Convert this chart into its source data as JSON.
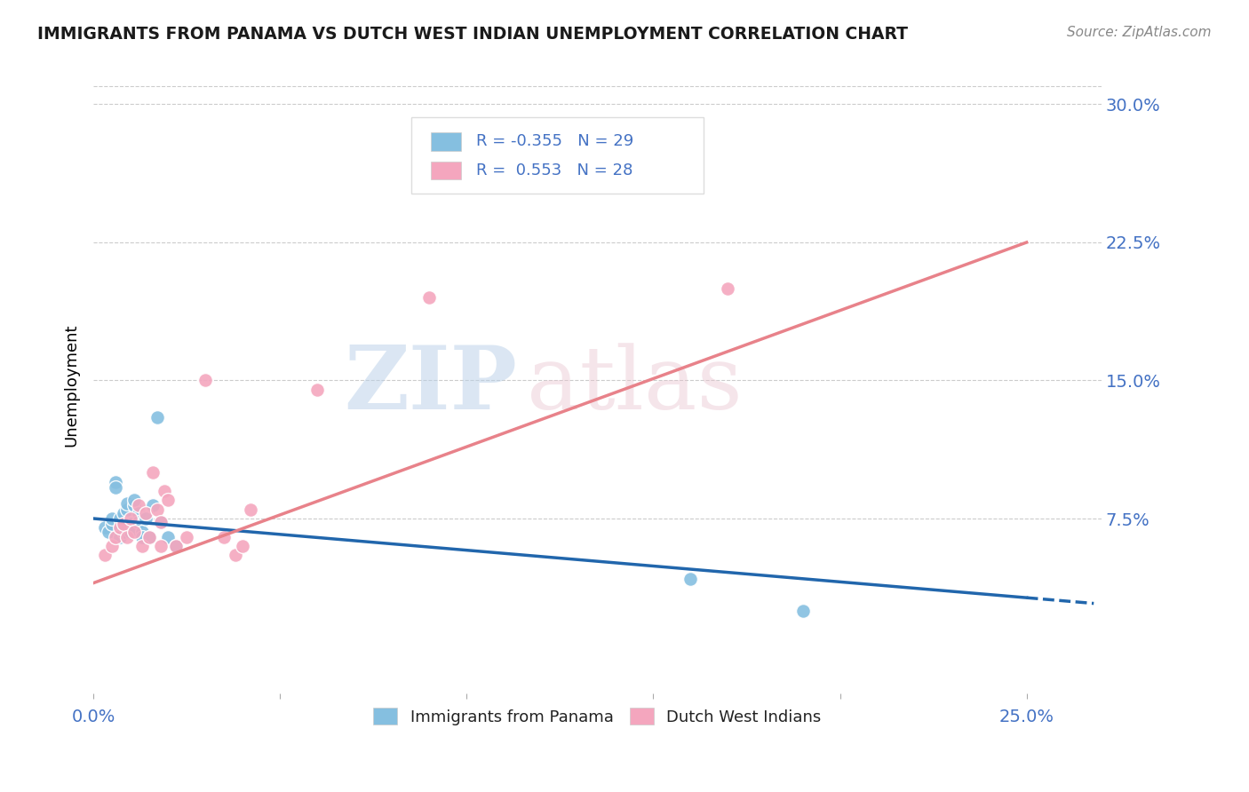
{
  "title": "IMMIGRANTS FROM PANAMA VS DUTCH WEST INDIAN UNEMPLOYMENT CORRELATION CHART",
  "source": "Source: ZipAtlas.com",
  "ylabel": "Unemployment",
  "ytick_vals": [
    0.075,
    0.15,
    0.225,
    0.3
  ],
  "ytick_labels": [
    "7.5%",
    "15.0%",
    "22.5%",
    "30.0%"
  ],
  "xlim": [
    0.0,
    0.27
  ],
  "ylim": [
    -0.02,
    0.315
  ],
  "legend_r_blue": "-0.355",
  "legend_n_blue": "29",
  "legend_r_pink": "0.553",
  "legend_n_pink": "28",
  "legend_label_blue": "Immigrants from Panama",
  "legend_label_pink": "Dutch West Indians",
  "blue_scatter_color": "#85bfe0",
  "pink_scatter_color": "#f4a6be",
  "blue_line_color": "#2166ac",
  "pink_line_color": "#e8828a",
  "title_color": "#1a1a1a",
  "axis_label_color": "#4472c4",
  "watermark_color": "#d0dff0",
  "blue_scatter_x": [
    0.003,
    0.004,
    0.005,
    0.005,
    0.006,
    0.006,
    0.007,
    0.007,
    0.008,
    0.008,
    0.009,
    0.009,
    0.01,
    0.01,
    0.011,
    0.011,
    0.012,
    0.012,
    0.013,
    0.013,
    0.014,
    0.015,
    0.016,
    0.017,
    0.018,
    0.02,
    0.022,
    0.16,
    0.19
  ],
  "blue_scatter_y": [
    0.07,
    0.068,
    0.072,
    0.075,
    0.095,
    0.092,
    0.065,
    0.075,
    0.078,
    0.068,
    0.08,
    0.083,
    0.072,
    0.068,
    0.082,
    0.085,
    0.078,
    0.073,
    0.068,
    0.065,
    0.075,
    0.065,
    0.082,
    0.13,
    0.073,
    0.065,
    0.06,
    0.042,
    0.025
  ],
  "pink_scatter_x": [
    0.003,
    0.005,
    0.006,
    0.007,
    0.008,
    0.009,
    0.01,
    0.011,
    0.012,
    0.013,
    0.014,
    0.015,
    0.016,
    0.017,
    0.018,
    0.018,
    0.019,
    0.02,
    0.022,
    0.025,
    0.03,
    0.035,
    0.038,
    0.04,
    0.042,
    0.06,
    0.09,
    0.17
  ],
  "pink_scatter_y": [
    0.055,
    0.06,
    0.065,
    0.07,
    0.072,
    0.065,
    0.075,
    0.068,
    0.082,
    0.06,
    0.078,
    0.065,
    0.1,
    0.08,
    0.073,
    0.06,
    0.09,
    0.085,
    0.06,
    0.065,
    0.15,
    0.065,
    0.055,
    0.06,
    0.08,
    0.145,
    0.195,
    0.2
  ],
  "blue_line_x0": 0.0,
  "blue_line_y0": 0.075,
  "blue_line_x1": 0.25,
  "blue_line_y1": 0.032,
  "blue_line_xdash": 0.25,
  "blue_line_xdash_end": 0.268,
  "pink_line_x0": 0.0,
  "pink_line_y0": 0.04,
  "pink_line_x1": 0.25,
  "pink_line_y1": 0.225
}
